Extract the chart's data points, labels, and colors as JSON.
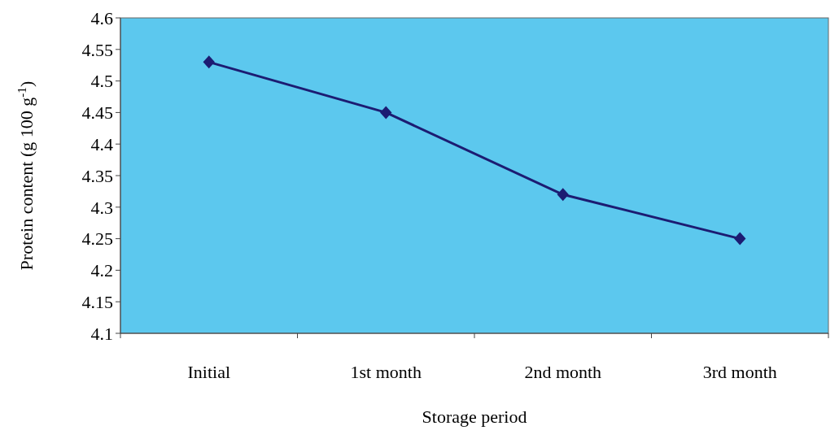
{
  "chart_data": {
    "type": "line",
    "xlabel": "Storage period",
    "ylabel": "Protein content (g 100 g$^{-1}$)",
    "categories": [
      "Initial",
      "1st month",
      "2nd month",
      "3rd month"
    ],
    "series": [
      {
        "color": "#1c1c72",
        "values": [
          4.53,
          4.45,
          4.32,
          4.25
        ]
      }
    ],
    "ylim": [
      4.1,
      4.6
    ],
    "yticks": [
      4.1,
      4.15,
      4.2,
      4.25,
      4.3,
      4.35,
      4.4,
      4.45,
      4.5,
      4.55,
      4.6
    ],
    "marker": "diamond",
    "line_style": "solid"
  }
}
